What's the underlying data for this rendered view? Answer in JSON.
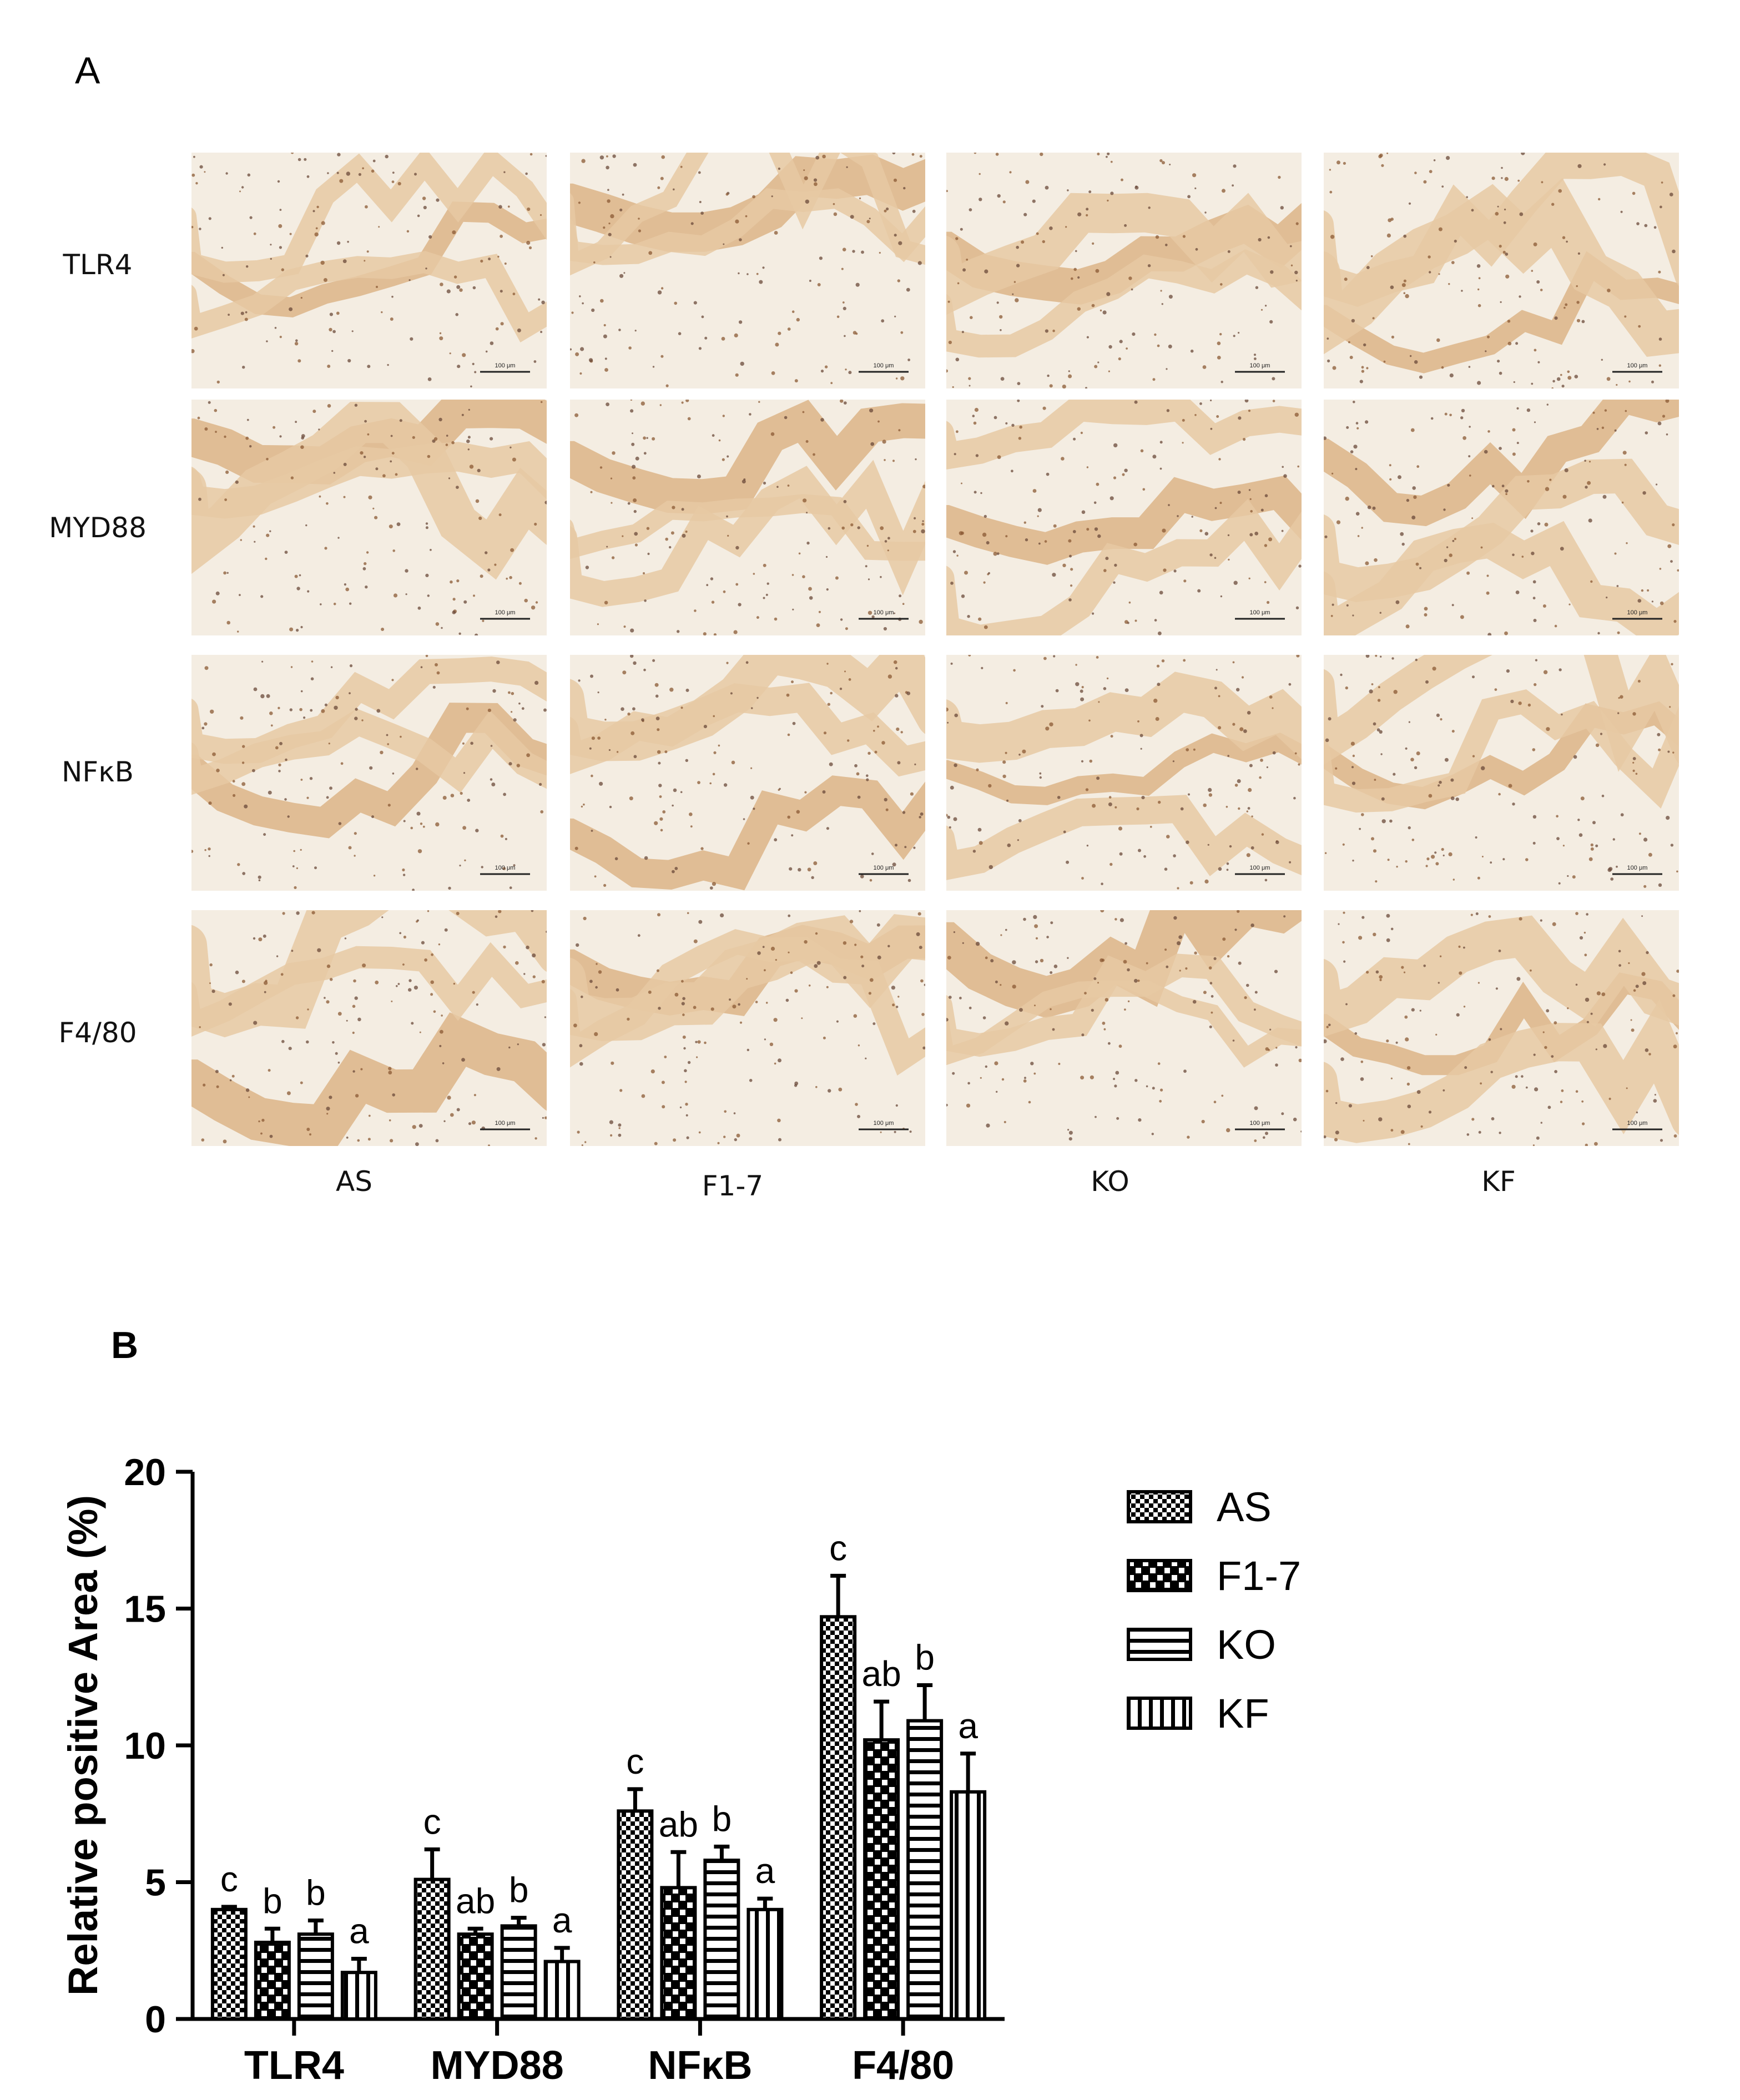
{
  "panel_a": {
    "letter": "A",
    "row_labels": [
      "TLR4",
      "MYD88",
      "NFκB",
      "F4/80"
    ],
    "column_labels": [
      "AS",
      "F1-7",
      "KO",
      "KF"
    ],
    "scale_bar_label": "100 μm"
  },
  "panel_b": {
    "letter": "B"
  },
  "colors": {
    "bar_fill": "#000000",
    "tissue_background": "#f3eadb",
    "tissue_stain": "#c98a4b"
  },
  "chart_data": {
    "type": "bar",
    "title": "",
    "ylabel": "Relative positive Area (%)",
    "xlabel": "",
    "categories": [
      "TLR4",
      "MYD88",
      "NFκB",
      "F4/80"
    ],
    "ylim": [
      0,
      20
    ],
    "yticks": [
      0,
      5,
      10,
      15,
      20
    ],
    "legend_position": "right",
    "grid": false,
    "series": [
      {
        "name": "AS",
        "pattern": "checker-fine",
        "values": [
          4.0,
          5.1,
          7.6,
          14.7
        ],
        "errors": [
          0.1,
          1.1,
          0.8,
          1.5
        ],
        "letters": [
          "c",
          "c",
          "c",
          "c"
        ]
      },
      {
        "name": "F1-7",
        "pattern": "checker-coarse",
        "values": [
          2.8,
          3.1,
          4.8,
          10.2
        ],
        "errors": [
          0.5,
          0.2,
          1.3,
          1.4
        ],
        "letters": [
          "b",
          "ab",
          "ab",
          "ab"
        ]
      },
      {
        "name": "KO",
        "pattern": "horizontal",
        "values": [
          3.1,
          3.4,
          5.8,
          10.9
        ],
        "errors": [
          0.5,
          0.3,
          0.5,
          1.3
        ],
        "letters": [
          "b",
          "b",
          "b",
          "b"
        ]
      },
      {
        "name": "KF",
        "pattern": "vertical",
        "values": [
          1.7,
          2.1,
          4.0,
          8.3
        ],
        "errors": [
          0.5,
          0.5,
          0.4,
          1.4
        ],
        "letters": [
          "a",
          "a",
          "a",
          "a"
        ]
      }
    ]
  }
}
